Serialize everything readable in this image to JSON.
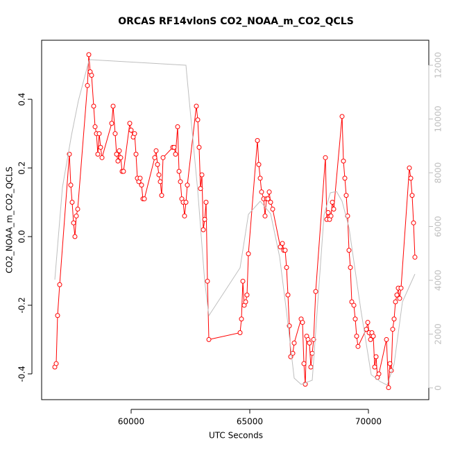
{
  "chart_data": {
    "type": "line",
    "title": "ORCAS RF14vlonS CO2_NOAA_m_CO2_QCLS",
    "xlabel": "UTC Seconds",
    "ylabel": "CO2_NOAA_m_CO2_QCLS",
    "xlim": [
      56228,
      72544
    ],
    "xticks": [
      60000,
      65000,
      70000
    ],
    "ylim": [
      -0.475,
      0.572
    ],
    "yticks": [
      -0.4,
      -0.2,
      {
        "value": 0,
        "label": "0.0"
      },
      0.2,
      0.4
    ],
    "y2lim": [
      -439,
      12929
    ],
    "y2ticks": [
      0,
      2000,
      4000,
      6000,
      8000,
      10000,
      12000
    ],
    "y2color": "#bebebe",
    "series": [
      {
        "color": "#ff0000",
        "marker": "circle",
        "x": [
          56784,
          56842,
          56900,
          56988,
          57397,
          57456,
          57514,
          57573,
          57631,
          57690,
          57748,
          58158,
          58216,
          58275,
          58333,
          58421,
          58480,
          58538,
          58596,
          58655,
          58713,
          58772,
          59181,
          59240,
          59327,
          59386,
          59444,
          59503,
          59561,
          59620,
          59678,
          59942,
          60000,
          60088,
          60146,
          60205,
          60263,
          60322,
          60380,
          60439,
          60497,
          60556,
          60994,
          61053,
          61111,
          61170,
          61228,
          61287,
          61345,
          61755,
          61813,
          61871,
          61959,
          62018,
          62076,
          62135,
          62193,
          62251,
          62310,
          62368,
          62748,
          62807,
          62865,
          62924,
          62982,
          63041,
          63099,
          63158,
          63216,
          63275,
          64591,
          64649,
          64708,
          64766,
          64825,
          64883,
          64942,
          65322,
          65380,
          65439,
          65497,
          65585,
          65643,
          65702,
          65760,
          65819,
          65877,
          65965,
          66287,
          66374,
          66433,
          66491,
          66550,
          66608,
          66667,
          66725,
          66813,
          66871,
          67164,
          67222,
          67281,
          67339,
          67398,
          67456,
          67515,
          67573,
          67632,
          67690,
          67778,
          68187,
          68246,
          68304,
          68363,
          68421,
          68480,
          68538,
          68889,
          68947,
          69006,
          69064,
          69123,
          69181,
          69240,
          69298,
          69386,
          69444,
          69503,
          69561,
          69912,
          69971,
          70029,
          70088,
          70146,
          70205,
          70263,
          70322,
          70380,
          70439,
          70760,
          70848,
          70906,
          70965,
          71023,
          71082,
          71140,
          71199,
          71257,
          71316,
          71374,
          71725,
          71784,
          71842,
          71901,
          71959
        ],
        "values": [
          -0.38,
          -0.37,
          -0.23,
          -0.14,
          0.24,
          0.15,
          0.1,
          0.04,
          0.0,
          0.06,
          0.08,
          0.44,
          0.53,
          0.48,
          0.47,
          0.38,
          0.32,
          0.3,
          0.24,
          0.3,
          0.26,
          0.23,
          0.33,
          0.38,
          0.3,
          0.24,
          0.22,
          0.25,
          0.23,
          0.19,
          0.19,
          0.33,
          0.31,
          0.29,
          0.3,
          0.24,
          0.17,
          0.16,
          0.17,
          0.15,
          0.11,
          0.11,
          0.23,
          0.25,
          0.21,
          0.18,
          0.16,
          0.12,
          0.23,
          0.26,
          0.26,
          0.24,
          0.32,
          0.19,
          0.16,
          0.11,
          0.1,
          0.06,
          0.1,
          0.15,
          0.38,
          0.34,
          0.26,
          0.14,
          0.18,
          0.02,
          0.05,
          0.1,
          -0.13,
          -0.3,
          -0.28,
          -0.24,
          -0.13,
          -0.2,
          -0.19,
          -0.17,
          -0.05,
          0.28,
          0.21,
          0.17,
          0.13,
          0.11,
          0.06,
          0.11,
          0.11,
          0.13,
          0.1,
          0.08,
          -0.03,
          -0.02,
          -0.04,
          -0.04,
          -0.09,
          -0.17,
          -0.26,
          -0.35,
          -0.34,
          -0.31,
          -0.24,
          -0.25,
          -0.37,
          -0.43,
          -0.29,
          -0.3,
          -0.31,
          -0.38,
          -0.34,
          -0.3,
          -0.16,
          0.23,
          0.05,
          0.07,
          0.05,
          0.06,
          0.1,
          0.08,
          0.35,
          0.22,
          0.17,
          0.12,
          0.06,
          -0.04,
          -0.09,
          -0.19,
          -0.2,
          -0.24,
          -0.29,
          -0.32,
          -0.27,
          -0.25,
          -0.28,
          -0.3,
          -0.28,
          -0.29,
          -0.38,
          -0.35,
          -0.41,
          -0.4,
          -0.3,
          -0.44,
          -0.37,
          -0.39,
          -0.27,
          -0.24,
          -0.19,
          -0.17,
          -0.15,
          -0.18,
          -0.15,
          0.2,
          0.17,
          0.12,
          0.04,
          -0.06
        ]
      },
      {
        "color": "#bebebe",
        "axis": "y2",
        "x": [
          56784,
          57105,
          57485,
          57778,
          58216,
          58275,
          62310,
          62339,
          62807,
          63099,
          63275,
          64591,
          64942,
          65439,
          65877,
          66257,
          66550,
          66871,
          67164,
          67632,
          68129,
          68392,
          68655,
          68889,
          69181,
          69678,
          70117,
          70497,
          70789,
          71082,
          71433,
          71959
        ],
        "values": [
          4026,
          7458,
          9394,
          10684,
          12155,
          12206,
          12000,
          11716,
          7329,
          3974,
          2684,
          4465,
          6452,
          6942,
          6477,
          4877,
          2813,
          361,
          129,
          284,
          6426,
          7252,
          7303,
          6942,
          5961,
          2916,
          490,
          232,
          103,
          877,
          3200,
          4232
        ]
      }
    ]
  }
}
